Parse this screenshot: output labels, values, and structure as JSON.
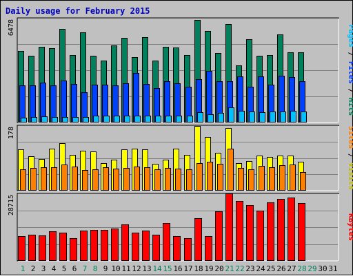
{
  "chart_data": {
    "type": "bar",
    "title": "Daily usage for February 2015",
    "days": [
      "1",
      "2",
      "3",
      "4",
      "5",
      "6",
      "7",
      "8",
      "9",
      "10",
      "11",
      "12",
      "13",
      "14",
      "15",
      "16",
      "17",
      "18",
      "19",
      "20",
      "21",
      "22",
      "23",
      "24",
      "25",
      "26",
      "27",
      "28",
      "29",
      "30",
      "31"
    ],
    "weekend_days": [
      "1",
      "7",
      "8",
      "14",
      "15",
      "21",
      "22",
      "28",
      "29"
    ],
    "panels": [
      {
        "id": "hits",
        "max_label": "6478",
        "max": 6478,
        "series": [
          {
            "name": "Hits",
            "color": "#00805c",
            "values": [
              4460,
              4160,
              4690,
              4620,
              5820,
              4180,
              5620,
              4160,
              3830,
              4790,
              5290,
              4080,
              5330,
              3860,
              4700,
              4660,
              4190,
              6380,
              5710,
              4320,
              6150,
              3560,
              5190,
              4160,
              4210,
              5470,
              4380,
              4380,
              0,
              0,
              0
            ]
          },
          {
            "name": "Files",
            "color": "#0040ff",
            "values": [
              2300,
              2290,
              2460,
              2300,
              2610,
              2380,
              1850,
              2340,
              2330,
              2300,
              2400,
              3070,
              2390,
              2100,
              2550,
              2400,
              2220,
              2690,
              3210,
              2530,
              2550,
              2850,
              2220,
              2870,
              2330,
              2880,
              2790,
              2540,
              0,
              0,
              0
            ]
          },
          {
            "name": "Pages",
            "color": "#00c0ff",
            "values": [
              270,
              300,
              330,
              320,
              310,
              320,
              310,
              410,
              390,
              380,
              380,
              400,
              390,
              410,
              410,
              400,
              390,
              620,
              460,
              540,
              920,
              700,
              640,
              590,
              640,
              640,
              700,
              640,
              0,
              0,
              0
            ]
          }
        ]
      },
      {
        "id": "visits",
        "max_label": "178",
        "max": 178,
        "series": [
          {
            "name": "Visits",
            "color": "#ffff00",
            "values": [
              112,
              93,
              87,
              115,
              131,
              98,
              109,
              108,
              75,
              84,
              112,
              114,
              112,
              72,
              84,
              115,
              98,
              178,
              148,
              103,
              172,
              75,
              80,
              96,
              92,
              96,
              96,
              79,
              0,
              0,
              0
            ]
          },
          {
            "name": "Sites",
            "color": "#ff8000",
            "values": [
              58,
              62,
              63,
              63,
              70,
              66,
              55,
              58,
              63,
              60,
              62,
              66,
              64,
              58,
              61,
              60,
              58,
              75,
              78,
              72,
              115,
              62,
              58,
              67,
              63,
              69,
              71,
              49,
              0,
              0,
              0
            ]
          }
        ]
      },
      {
        "id": "kbytes",
        "max_label": "28715",
        "max": 28715,
        "series": [
          {
            "name": "KBytes",
            "color": "#ff0000",
            "values": [
              10600,
              11200,
              10900,
              12600,
              11900,
              9500,
              12800,
              13200,
              13200,
              13900,
              15600,
              11900,
              13000,
              11000,
              16300,
              10400,
              9700,
              18100,
              10500,
              21200,
              29100,
              25700,
              24000,
              21500,
              25000,
              26600,
              27200,
              24800,
              0,
              0,
              0
            ]
          }
        ]
      }
    ],
    "right_labels": [
      {
        "panel": "hits",
        "parts": [
          {
            "text": "Pages",
            "color": "#00c0ff"
          },
          {
            "text": " / ",
            "color": "#000000"
          },
          {
            "text": "Files",
            "color": "#0040ff"
          },
          {
            "text": " / ",
            "color": "#000000"
          },
          {
            "text": "Hits",
            "color": "#00805c"
          }
        ]
      },
      {
        "panel": "visits",
        "parts": [
          {
            "text": "Sites",
            "color": "#ff8000"
          },
          {
            "text": " / ",
            "color": "#000000"
          },
          {
            "text": "Visits",
            "color": "#c0c000"
          }
        ]
      },
      {
        "panel": "kbytes",
        "parts": [
          {
            "text": "KBytes",
            "color": "#ff0000"
          }
        ]
      }
    ],
    "colors": {
      "background": "#c0c0c0",
      "title": "#0000c0",
      "weekday_label": "#000000",
      "weekend_label": "#00805c"
    },
    "grid": true,
    "legend": "right-vertical"
  }
}
